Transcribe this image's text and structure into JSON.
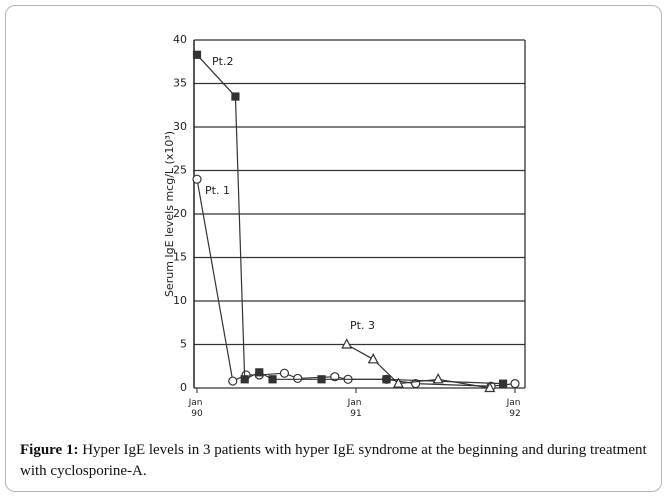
{
  "chart_data": {
    "type": "line",
    "y_label": "Serum IgE levels mcg/L (x10³)",
    "xlim": [
      0,
      24
    ],
    "xticks": [
      {
        "value": 0,
        "label": "Jan 90"
      },
      {
        "value": 12,
        "label": "Jan 91"
      },
      {
        "value": 24,
        "label": "Jan 92"
      }
    ],
    "ylim": [
      0,
      40
    ],
    "yticks": [
      0,
      5,
      10,
      15,
      20,
      25,
      30,
      35,
      40
    ],
    "grid": true,
    "series": [
      {
        "name": "Pt. 1",
        "color": "#333333",
        "marker": "circle",
        "x": [
          0,
          2.7,
          3.7,
          4.7,
          6.6,
          7.6,
          10.4,
          11.4,
          14.3,
          16.5,
          22.2,
          24
        ],
        "values": [
          24,
          0.8,
          1.5,
          1.5,
          1.7,
          1.1,
          1.3,
          1.0,
          1.0,
          0.5,
          0.2,
          0.5
        ]
      },
      {
        "name": "Pt.2",
        "color": "#333333",
        "marker": "square",
        "x": [
          0,
          2.9,
          3.6,
          4.7,
          5.7,
          9.4,
          14.3,
          23.1
        ],
        "values": [
          38.3,
          33.5,
          1.0,
          1.8,
          1.0,
          1.0,
          1.0,
          0.5
        ]
      },
      {
        "name": "Pt. 3",
        "color": "#333333",
        "marker": "triangle",
        "x": [
          11.3,
          13.3,
          15.2,
          18.2,
          22.1
        ],
        "values": [
          5,
          3.3,
          0.5,
          1.0,
          0
        ]
      }
    ]
  },
  "caption": {
    "label": "Figure 1:",
    "text": " Hyper IgE levels in 3 patients with hyper IgE syndrome at the beginning and during treatment with cyclosporine-A."
  }
}
